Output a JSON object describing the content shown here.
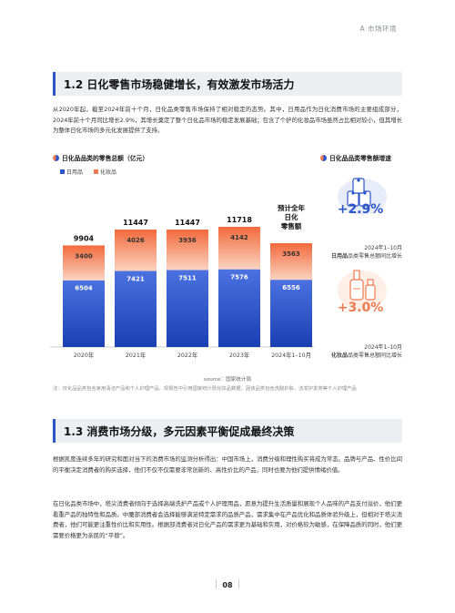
{
  "header": {
    "section_tag": "A 市场环境"
  },
  "section1": {
    "title": "1.2 日化零售市场稳健增长，有效激发市场活力",
    "paragraph": "从2020年起，截至2024年前十个月，日化品类零售市场保持了相对稳定的态势。其中，日用品作为日化消费市场的主要组成部分，2024年前十个月同比增长2.9%，其增长奠定了整个日化品市场的稳定发展基础；包含了个护的化妆品市场虽然占比相对较小，但其增长为整体日化市场的多元化发展提供了支持。"
  },
  "chart_title": "日化品品类的零售总额（亿元）",
  "chart_data": {
    "type": "bar",
    "stacked": true,
    "title": "日化品品类的零售总额（亿元）",
    "categories": [
      "2020年",
      "2021年",
      "2022年",
      "2023年",
      "2024年1–10月"
    ],
    "series": [
      {
        "name": "日用品",
        "values": [
          6504,
          7421,
          7511,
          7576,
          6556
        ],
        "color": "#2d55c9"
      },
      {
        "name": "化妆品",
        "values": [
          3400,
          4026,
          3936,
          4142,
          3563
        ],
        "color": "#f07b52"
      }
    ],
    "totals": [
      9904,
      11447,
      11447,
      11718,
      null
    ],
    "annotation": "预计全年日化零售额",
    "legend_position": "top-left"
  },
  "growth_panel": {
    "title": "日化品品类零售额增速",
    "items": [
      {
        "value": "+2.9%",
        "period": "2024年1–10月",
        "name": "日用品",
        "suffix": "品类零售总额同比增长",
        "icon": "toilet-paper-icon"
      },
      {
        "value": "+3.0%",
        "period": "2024年1–10月",
        "name": "化妆品",
        "suffix": "品类零售总额同比增长",
        "icon": "cosmetics-bottle-icon"
      }
    ]
  },
  "source": "source：国家统计局",
  "note": "注：日化品品类包含家用清洁产品和个人护理产品，现报告中引用国家统计局化妆品数据，因该品类包含洗脱护肤、洁发护发类等个人护理产品",
  "section2": {
    "title": "1.3 消费市场分级，多元因素平衡促成最终决策",
    "paragraph1": "根据凯度连续多年的研究和面对当下的消费市场的监测分析得出：中国市场上，消费分级和理性购买将成为常态。品牌与产品、性价比间的平衡决定消费者的购买选择，他们不仅不仅需要非常创新的、高性价比的产品，同时也要为他们提供情绪价值。",
    "paragraph2": "在日化品类市场中，塔尖消费者倾向于选择高端洗护产品或个人护理用品，愿意为提升生活质量和展现个人品味的产品支付溢价，他们更看重产品的独特性和品质。中腰部消费者会选择能够满足特定需求的品质产品，需求集中在产品优化和品质体验升级上，但相对于塔尖消费者，他们可能更注重性价比和实用性。根据部消费者对日化产品的需求更为基础和实用，对价格较为敏感，在保障品质的同时，他们更需要价格更为亲民的“平替”。"
  },
  "page_number": "08"
}
